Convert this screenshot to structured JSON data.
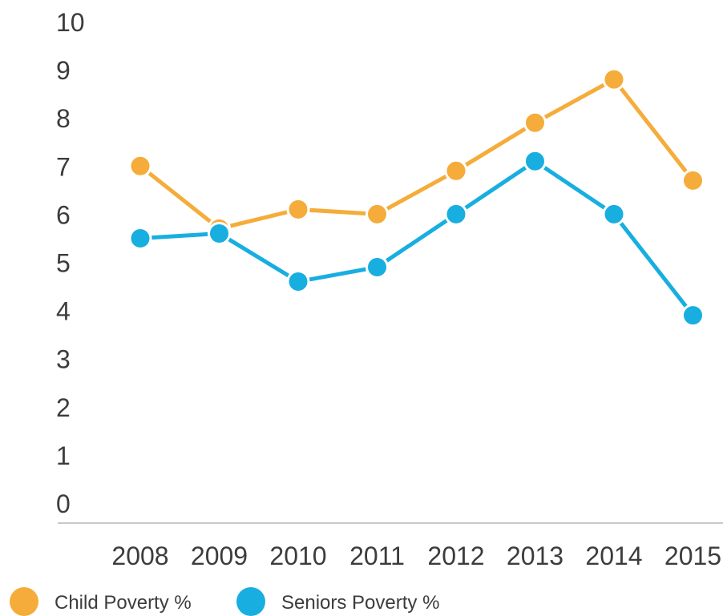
{
  "chart_data": {
    "type": "line",
    "title": "",
    "xlabel": "",
    "ylabel": "",
    "x": [
      "2008",
      "2009",
      "2010",
      "2011",
      "2012",
      "2013",
      "2014",
      "2015"
    ],
    "ylim": [
      0,
      10
    ],
    "yticks": [
      0,
      1,
      2,
      3,
      4,
      5,
      6,
      7,
      8,
      9,
      10
    ],
    "grid": false,
    "legend_position": "bottom-left",
    "series": [
      {
        "name": "Child Poverty %",
        "color": "#f5ac3a",
        "values": [
          7.0,
          5.7,
          6.1,
          6.0,
          6.9,
          7.9,
          8.8,
          6.7
        ]
      },
      {
        "name": "Seniors Poverty %",
        "color": "#18aee0",
        "values": [
          5.5,
          5.6,
          4.6,
          4.9,
          6.0,
          7.1,
          6.0,
          3.9
        ]
      }
    ]
  }
}
